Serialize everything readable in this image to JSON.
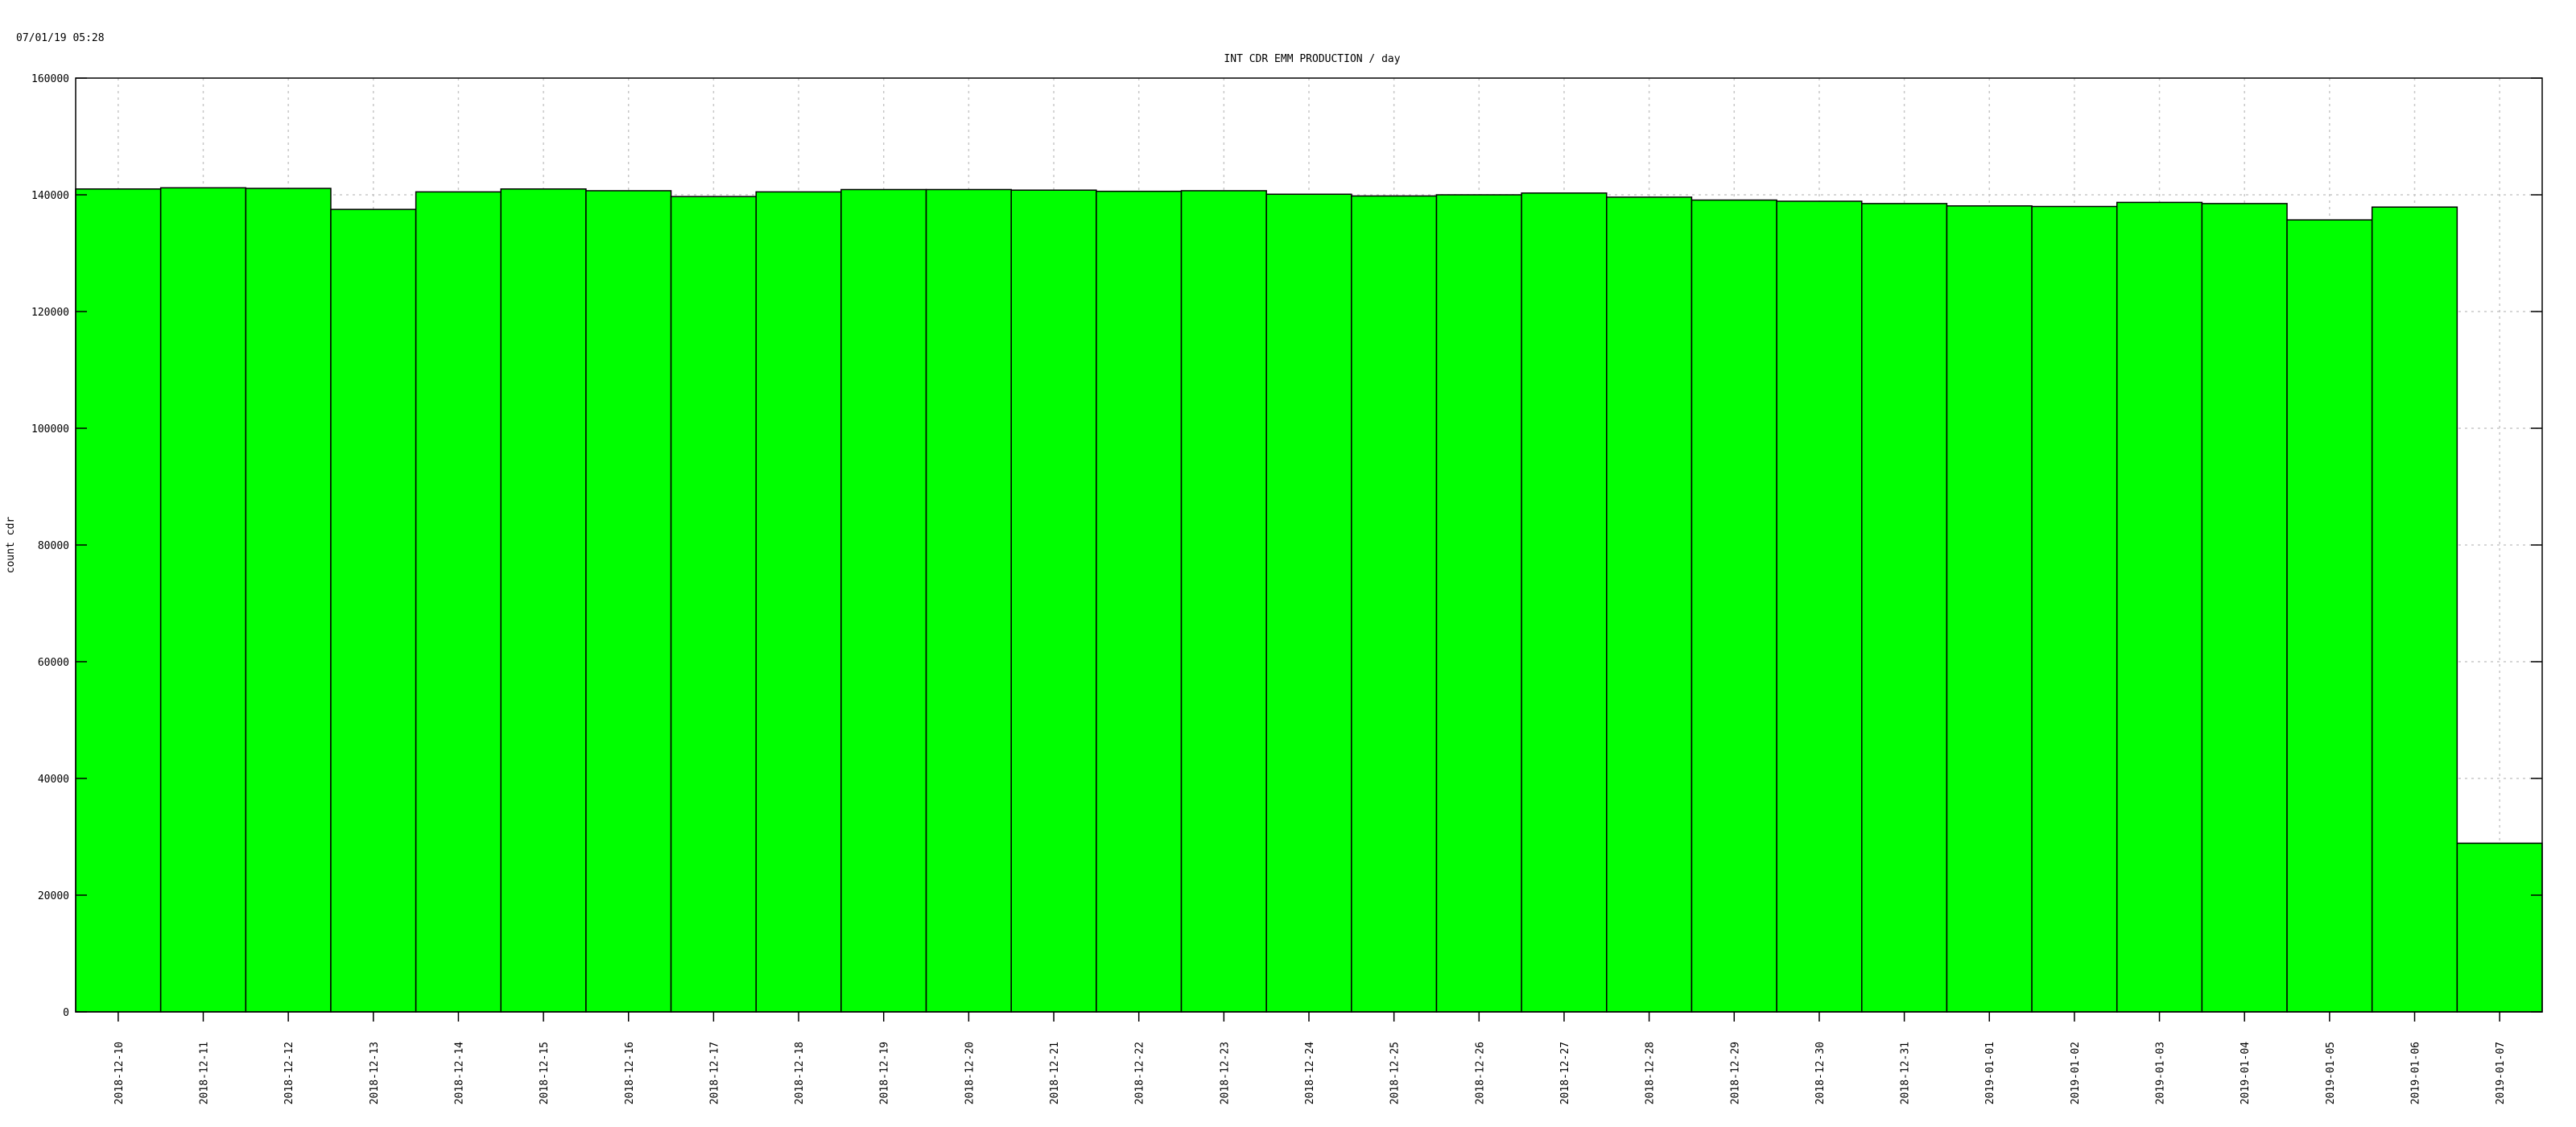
{
  "timestamp": "07/01/19 05:28",
  "chart_data": {
    "type": "bar",
    "title": "INT CDR EMM PRODUCTION / day",
    "xlabel": "",
    "ylabel": "count cdr",
    "ylim": [
      0,
      160000
    ],
    "yticks": [
      "0",
      "20000",
      "40000",
      "60000",
      "80000",
      "100000",
      "120000",
      "140000",
      "160000"
    ],
    "grid": true,
    "categories": [
      "2018-12-10",
      "2018-12-11",
      "2018-12-12",
      "2018-12-13",
      "2018-12-14",
      "2018-12-15",
      "2018-12-16",
      "2018-12-17",
      "2018-12-18",
      "2018-12-19",
      "2018-12-20",
      "2018-12-21",
      "2018-12-22",
      "2018-12-23",
      "2018-12-24",
      "2018-12-25",
      "2018-12-26",
      "2018-12-27",
      "2018-12-28",
      "2018-12-29",
      "2018-12-30",
      "2018-12-31",
      "2019-01-01",
      "2019-01-02",
      "2019-01-03",
      "2019-01-04",
      "2019-01-05",
      "2019-01-06",
      "2019-01-07"
    ],
    "values": [
      141000,
      141200,
      141100,
      137500,
      140500,
      141000,
      140700,
      139700,
      140500,
      140900,
      140900,
      140800,
      140600,
      140700,
      140100,
      139800,
      140000,
      140300,
      139600,
      139100,
      138900,
      138500,
      138100,
      138000,
      138700,
      138500,
      135700,
      137900,
      28900
    ],
    "bar_color": "#00ff00",
    "bar_edge_color": "#000000"
  }
}
